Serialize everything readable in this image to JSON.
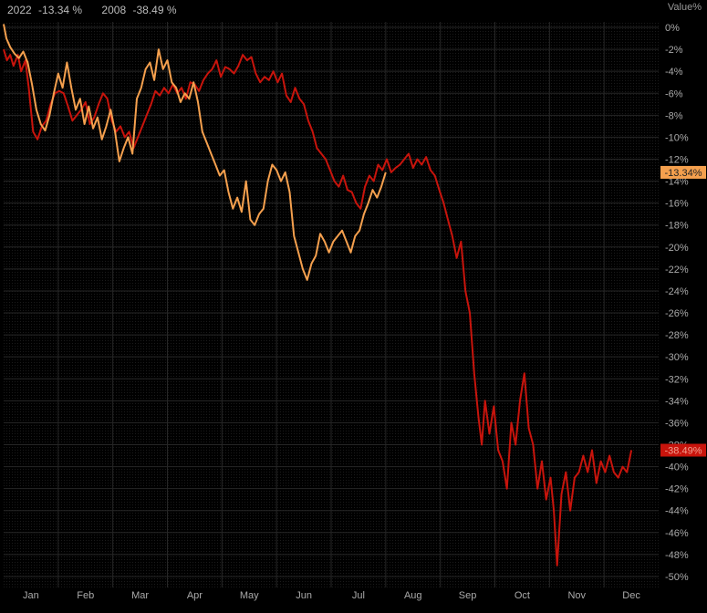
{
  "chart_data": {
    "type": "line",
    "unit_label": "Value%",
    "categories": [
      "Jan",
      "Feb",
      "Mar",
      "Apr",
      "May",
      "Jun",
      "Jul",
      "Aug",
      "Sep",
      "Oct",
      "Nov",
      "Dec"
    ],
    "yticks": [
      "0%",
      "-2%",
      "-4%",
      "-6%",
      "-8%",
      "-10%",
      "-12%",
      "-14%",
      "-16%",
      "-18%",
      "-20%",
      "-22%",
      "-24%",
      "-26%",
      "-28%",
      "-30%",
      "-32%",
      "-34%",
      "-36%",
      "-38%",
      "-40%",
      "-42%",
      "-44%",
      "-46%",
      "-48%",
      "-50%"
    ],
    "ylim": [
      -51,
      0.5
    ],
    "xlim": [
      0,
      12
    ],
    "grid": true,
    "legend_position": "top-left",
    "series": [
      {
        "name": "2022",
        "legend_value": "-13.34 %",
        "last_label": "-13.34%",
        "color": "#f5a04e",
        "points": [
          [
            0.0,
            0.3
          ],
          [
            0.05,
            -1.0
          ],
          [
            0.12,
            -1.8
          ],
          [
            0.2,
            -2.4
          ],
          [
            0.28,
            -2.8
          ],
          [
            0.36,
            -2.2
          ],
          [
            0.44,
            -3.2
          ],
          [
            0.52,
            -5.2
          ],
          [
            0.6,
            -7.5
          ],
          [
            0.68,
            -8.8
          ],
          [
            0.76,
            -9.4
          ],
          [
            0.84,
            -8.0
          ],
          [
            0.92,
            -6.0
          ],
          [
            1.0,
            -4.2
          ],
          [
            1.08,
            -5.5
          ],
          [
            1.16,
            -3.2
          ],
          [
            1.24,
            -5.5
          ],
          [
            1.32,
            -7.5
          ],
          [
            1.4,
            -6.5
          ],
          [
            1.48,
            -8.8
          ],
          [
            1.56,
            -7.2
          ],
          [
            1.64,
            -9.2
          ],
          [
            1.72,
            -8.2
          ],
          [
            1.8,
            -10.2
          ],
          [
            1.88,
            -9.0
          ],
          [
            1.96,
            -7.5
          ],
          [
            2.04,
            -9.5
          ],
          [
            2.12,
            -12.2
          ],
          [
            2.2,
            -11.0
          ],
          [
            2.28,
            -10.0
          ],
          [
            2.36,
            -11.5
          ],
          [
            2.44,
            -6.5
          ],
          [
            2.52,
            -5.5
          ],
          [
            2.6,
            -3.8
          ],
          [
            2.68,
            -3.2
          ],
          [
            2.76,
            -4.8
          ],
          [
            2.84,
            -2.0
          ],
          [
            2.92,
            -3.8
          ],
          [
            3.0,
            -3.0
          ],
          [
            3.08,
            -5.0
          ],
          [
            3.16,
            -5.5
          ],
          [
            3.24,
            -6.8
          ],
          [
            3.32,
            -6.0
          ],
          [
            3.4,
            -6.5
          ],
          [
            3.48,
            -5.0
          ],
          [
            3.56,
            -6.8
          ],
          [
            3.64,
            -9.5
          ],
          [
            3.72,
            -10.5
          ],
          [
            3.8,
            -11.5
          ],
          [
            3.88,
            -12.5
          ],
          [
            3.96,
            -13.5
          ],
          [
            4.04,
            -13.0
          ],
          [
            4.12,
            -15.0
          ],
          [
            4.2,
            -16.5
          ],
          [
            4.28,
            -15.5
          ],
          [
            4.36,
            -16.8
          ],
          [
            4.44,
            -14.0
          ],
          [
            4.52,
            -17.5
          ],
          [
            4.6,
            -18.0
          ],
          [
            4.68,
            -17.0
          ],
          [
            4.76,
            -16.5
          ],
          [
            4.84,
            -14.0
          ],
          [
            4.92,
            -12.5
          ],
          [
            5.0,
            -13.0
          ],
          [
            5.08,
            -14.0
          ],
          [
            5.16,
            -13.2
          ],
          [
            5.24,
            -15.0
          ],
          [
            5.32,
            -19.0
          ],
          [
            5.4,
            -20.5
          ],
          [
            5.48,
            -22.0
          ],
          [
            5.56,
            -23.0
          ],
          [
            5.64,
            -21.5
          ],
          [
            5.72,
            -20.8
          ],
          [
            5.8,
            -18.8
          ],
          [
            5.88,
            -19.5
          ],
          [
            5.96,
            -20.5
          ],
          [
            6.04,
            -19.5
          ],
          [
            6.12,
            -19.0
          ],
          [
            6.2,
            -18.5
          ],
          [
            6.28,
            -19.5
          ],
          [
            6.36,
            -20.5
          ],
          [
            6.44,
            -19.0
          ],
          [
            6.52,
            -18.5
          ],
          [
            6.6,
            -17.0
          ],
          [
            6.68,
            -16.0
          ],
          [
            6.76,
            -14.8
          ],
          [
            6.84,
            -15.5
          ],
          [
            6.92,
            -14.5
          ],
          [
            7.0,
            -13.2
          ]
        ]
      },
      {
        "name": "2008",
        "legend_value": "-38.49 %",
        "last_label": "-38.49%",
        "color": "#c8140c",
        "points": [
          [
            0.0,
            -2.0
          ],
          [
            0.06,
            -3.0
          ],
          [
            0.12,
            -2.5
          ],
          [
            0.18,
            -3.5
          ],
          [
            0.26,
            -2.5
          ],
          [
            0.32,
            -4.0
          ],
          [
            0.4,
            -3.0
          ],
          [
            0.46,
            -5.5
          ],
          [
            0.54,
            -9.5
          ],
          [
            0.62,
            -10.2
          ],
          [
            0.7,
            -9.0
          ],
          [
            0.78,
            -8.5
          ],
          [
            0.86,
            -7.0
          ],
          [
            0.94,
            -6.0
          ],
          [
            1.02,
            -5.8
          ],
          [
            1.1,
            -6.0
          ],
          [
            1.18,
            -7.2
          ],
          [
            1.26,
            -8.5
          ],
          [
            1.34,
            -8.0
          ],
          [
            1.42,
            -7.5
          ],
          [
            1.5,
            -6.8
          ],
          [
            1.58,
            -8.8
          ],
          [
            1.66,
            -8.2
          ],
          [
            1.74,
            -7.0
          ],
          [
            1.82,
            -6.0
          ],
          [
            1.9,
            -6.5
          ],
          [
            1.98,
            -8.5
          ],
          [
            2.06,
            -9.5
          ],
          [
            2.14,
            -9.0
          ],
          [
            2.22,
            -10.0
          ],
          [
            2.3,
            -9.5
          ],
          [
            2.38,
            -11.0
          ],
          [
            2.46,
            -10.0
          ],
          [
            2.54,
            -9.0
          ],
          [
            2.62,
            -8.0
          ],
          [
            2.7,
            -7.0
          ],
          [
            2.78,
            -5.8
          ],
          [
            2.86,
            -6.2
          ],
          [
            2.94,
            -5.5
          ],
          [
            3.02,
            -6.0
          ],
          [
            3.1,
            -5.2
          ],
          [
            3.18,
            -6.0
          ],
          [
            3.26,
            -5.5
          ],
          [
            3.34,
            -6.5
          ],
          [
            3.42,
            -5.0
          ],
          [
            3.5,
            -5.2
          ],
          [
            3.58,
            -5.8
          ],
          [
            3.66,
            -4.8
          ],
          [
            3.74,
            -4.2
          ],
          [
            3.82,
            -3.8
          ],
          [
            3.9,
            -3.0
          ],
          [
            3.98,
            -4.5
          ],
          [
            4.06,
            -3.6
          ],
          [
            4.14,
            -3.8
          ],
          [
            4.22,
            -4.2
          ],
          [
            4.3,
            -3.5
          ],
          [
            4.38,
            -2.5
          ],
          [
            4.46,
            -3.0
          ],
          [
            4.54,
            -2.7
          ],
          [
            4.62,
            -4.2
          ],
          [
            4.7,
            -5.0
          ],
          [
            4.78,
            -4.5
          ],
          [
            4.86,
            -4.8
          ],
          [
            4.94,
            -4.0
          ],
          [
            5.02,
            -5.0
          ],
          [
            5.1,
            -4.2
          ],
          [
            5.18,
            -6.2
          ],
          [
            5.26,
            -6.8
          ],
          [
            5.34,
            -5.5
          ],
          [
            5.42,
            -6.5
          ],
          [
            5.5,
            -7.0
          ],
          [
            5.58,
            -8.5
          ],
          [
            5.66,
            -9.5
          ],
          [
            5.74,
            -11.0
          ],
          [
            5.82,
            -11.5
          ],
          [
            5.9,
            -12.0
          ],
          [
            5.98,
            -13.0
          ],
          [
            6.06,
            -14.0
          ],
          [
            6.14,
            -14.5
          ],
          [
            6.22,
            -13.5
          ],
          [
            6.3,
            -14.8
          ],
          [
            6.38,
            -15.0
          ],
          [
            6.46,
            -16.0
          ],
          [
            6.54,
            -16.5
          ],
          [
            6.62,
            -14.5
          ],
          [
            6.7,
            -13.5
          ],
          [
            6.78,
            -14.0
          ],
          [
            6.86,
            -12.5
          ],
          [
            6.94,
            -13.0
          ],
          [
            7.02,
            -12.0
          ],
          [
            7.1,
            -13.2
          ],
          [
            7.18,
            -12.8
          ],
          [
            7.26,
            -12.5
          ],
          [
            7.34,
            -12.0
          ],
          [
            7.42,
            -11.5
          ],
          [
            7.5,
            -12.8
          ],
          [
            7.58,
            -12.0
          ],
          [
            7.66,
            -12.5
          ],
          [
            7.74,
            -11.8
          ],
          [
            7.82,
            -13.0
          ],
          [
            7.9,
            -13.5
          ],
          [
            7.98,
            -14.8
          ],
          [
            8.06,
            -16.0
          ],
          [
            8.14,
            -17.5
          ],
          [
            8.22,
            -19.0
          ],
          [
            8.3,
            -21.0
          ],
          [
            8.38,
            -19.5
          ],
          [
            8.46,
            -24.0
          ],
          [
            8.54,
            -26.0
          ],
          [
            8.62,
            -31.5
          ],
          [
            8.7,
            -35.5
          ],
          [
            8.76,
            -38.0
          ],
          [
            8.82,
            -34.0
          ],
          [
            8.9,
            -37.0
          ],
          [
            8.98,
            -34.5
          ],
          [
            9.06,
            -38.5
          ],
          [
            9.14,
            -39.5
          ],
          [
            9.22,
            -42.0
          ],
          [
            9.3,
            -36.0
          ],
          [
            9.38,
            -38.0
          ],
          [
            9.46,
            -34.0
          ],
          [
            9.54,
            -31.5
          ],
          [
            9.62,
            -36.5
          ],
          [
            9.7,
            -38.0
          ],
          [
            9.78,
            -42.0
          ],
          [
            9.86,
            -39.5
          ],
          [
            9.94,
            -43.0
          ],
          [
            10.02,
            -41.0
          ],
          [
            10.08,
            -44.0
          ],
          [
            10.14,
            -49.0
          ],
          [
            10.22,
            -42.5
          ],
          [
            10.3,
            -40.5
          ],
          [
            10.38,
            -44.0
          ],
          [
            10.46,
            -41.0
          ],
          [
            10.54,
            -40.5
          ],
          [
            10.62,
            -39.0
          ],
          [
            10.7,
            -40.5
          ],
          [
            10.78,
            -38.5
          ],
          [
            10.86,
            -41.5
          ],
          [
            10.94,
            -39.5
          ],
          [
            11.02,
            -40.5
          ],
          [
            11.1,
            -39.0
          ],
          [
            11.18,
            -40.5
          ],
          [
            11.26,
            -41.0
          ],
          [
            11.34,
            -40.0
          ],
          [
            11.42,
            -40.5
          ],
          [
            11.5,
            -38.5
          ]
        ]
      }
    ]
  }
}
